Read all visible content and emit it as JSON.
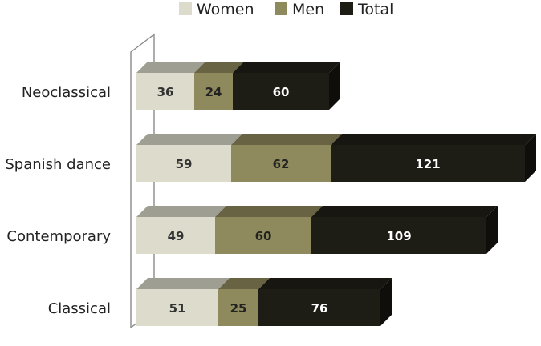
{
  "chart_data": {
    "type": "bar",
    "orientation": "horizontal",
    "stacked": true,
    "three_d": true,
    "categories": [
      "Neoclassical",
      "Spanish dance",
      "Contemporary",
      "Classical"
    ],
    "series": [
      {
        "name": "Women",
        "values": [
          36,
          59,
          49,
          51
        ],
        "color": "#dddbcb",
        "label_color": "#333333"
      },
      {
        "name": "Men",
        "values": [
          24,
          62,
          60,
          25
        ],
        "color": "#8f8a5d",
        "label_color": "#222222"
      },
      {
        "name": "Total",
        "values": [
          60,
          121,
          109,
          76
        ],
        "color": "#1d1c15",
        "label_color": "#ffffff"
      }
    ],
    "legend_position": "top",
    "grid": false,
    "xlim": [
      0,
      250
    ]
  }
}
